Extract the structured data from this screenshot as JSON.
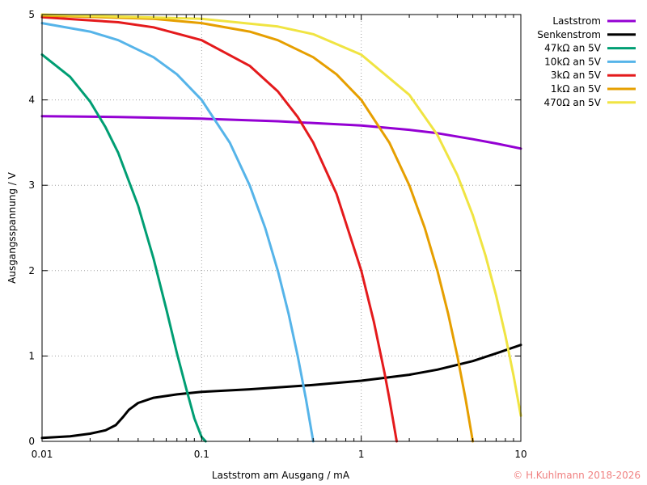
{
  "chart_data": {
    "type": "line",
    "title": "",
    "xlabel": "Laststrom am Ausgang / mA",
    "ylabel": "Ausgangsspannung / V",
    "xscale": "log",
    "xlim": [
      0.01,
      10
    ],
    "ylim": [
      0,
      5
    ],
    "grid": true,
    "legend_position": "outside-right-top",
    "xticks": [
      {
        "value": 0.01,
        "label": "0.01"
      },
      {
        "value": 0.1,
        "label": "0.1"
      },
      {
        "value": 1,
        "label": "1"
      },
      {
        "value": 10,
        "label": "10"
      }
    ],
    "yticks": [
      {
        "value": 0,
        "label": "0"
      },
      {
        "value": 1,
        "label": "1"
      },
      {
        "value": 2,
        "label": "2"
      },
      {
        "value": 3,
        "label": "3"
      },
      {
        "value": 4,
        "label": "4"
      },
      {
        "value": 5,
        "label": "5"
      }
    ],
    "series": [
      {
        "name": "Laststrom",
        "color": "#9400d3",
        "x": [
          0.01,
          0.03,
          0.1,
          0.3,
          1,
          2,
          3,
          5,
          7,
          10
        ],
        "y": [
          3.81,
          3.8,
          3.78,
          3.75,
          3.7,
          3.65,
          3.61,
          3.54,
          3.49,
          3.43
        ]
      },
      {
        "name": "Senkenstrom",
        "color": "#000000",
        "x": [
          0.01,
          0.015,
          0.02,
          0.025,
          0.029,
          0.032,
          0.035,
          0.04,
          0.05,
          0.07,
          0.1,
          0.2,
          0.5,
          1,
          2,
          3,
          5,
          7,
          10
        ],
        "y": [
          0.04,
          0.06,
          0.09,
          0.13,
          0.19,
          0.28,
          0.37,
          0.45,
          0.51,
          0.55,
          0.58,
          0.61,
          0.66,
          0.71,
          0.78,
          0.84,
          0.94,
          1.03,
          1.13
        ]
      },
      {
        "name": "47kΩ an 5V",
        "color": "#009e73",
        "x": [
          0.01,
          0.015,
          0.02,
          0.025,
          0.03,
          0.04,
          0.05,
          0.06,
          0.07,
          0.08,
          0.09,
          0.1,
          0.106
        ],
        "y": [
          4.53,
          4.27,
          3.98,
          3.68,
          3.38,
          2.76,
          2.14,
          1.55,
          1.03,
          0.62,
          0.27,
          0.05,
          0.0
        ]
      },
      {
        "name": "10kΩ an 5V",
        "color": "#56b4e9",
        "x": [
          0.01,
          0.02,
          0.03,
          0.05,
          0.07,
          0.1,
          0.15,
          0.2,
          0.25,
          0.3,
          0.35,
          0.4,
          0.45,
          0.5
        ],
        "y": [
          4.9,
          4.8,
          4.7,
          4.5,
          4.3,
          4.0,
          3.5,
          3.0,
          2.5,
          2.0,
          1.5,
          1.0,
          0.5,
          0.0
        ]
      },
      {
        "name": "3kΩ an 5V",
        "color": "#e41a1c",
        "x": [
          0.01,
          0.03,
          0.05,
          0.1,
          0.2,
          0.3,
          0.4,
          0.5,
          0.7,
          1.0,
          1.2,
          1.4,
          1.5,
          1.6,
          1.667
        ],
        "y": [
          4.97,
          4.91,
          4.85,
          4.7,
          4.4,
          4.1,
          3.8,
          3.5,
          2.9,
          2.0,
          1.4,
          0.8,
          0.5,
          0.2,
          0.0
        ]
      },
      {
        "name": "1kΩ an 5V",
        "color": "#e69f00",
        "x": [
          0.01,
          0.05,
          0.1,
          0.2,
          0.3,
          0.5,
          0.7,
          1.0,
          1.5,
          2.0,
          2.5,
          3.0,
          3.5,
          4.0,
          4.5,
          5.0
        ],
        "y": [
          4.99,
          4.95,
          4.9,
          4.8,
          4.7,
          4.5,
          4.3,
          4.0,
          3.5,
          3.0,
          2.5,
          2.0,
          1.5,
          1.0,
          0.5,
          0.0
        ]
      },
      {
        "name": "470Ω an 5V",
        "color": "#f0e442",
        "x": [
          0.01,
          0.1,
          0.3,
          0.5,
          1.0,
          2.0,
          3.0,
          4.0,
          5.0,
          6.0,
          7.0,
          8.0,
          9.0,
          10.0
        ],
        "y": [
          5.0,
          4.95,
          4.86,
          4.77,
          4.53,
          4.06,
          3.59,
          3.12,
          2.65,
          2.18,
          1.71,
          1.24,
          0.77,
          0.3
        ]
      }
    ]
  },
  "credit": {
    "text": "© H.Kuhlmann 2018-2026",
    "color": "#f08080"
  }
}
